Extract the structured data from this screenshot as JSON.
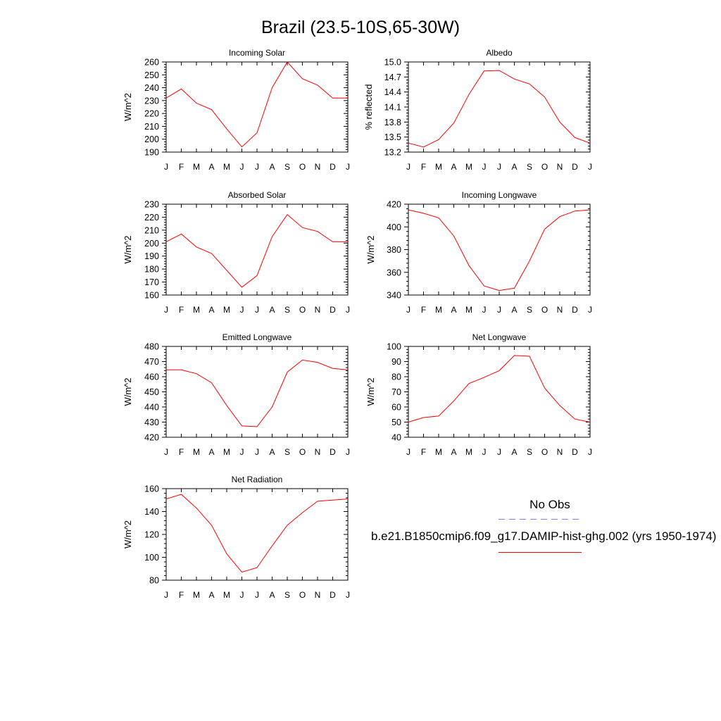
{
  "title": "Brazil (23.5-10S,65-30W)",
  "legend": {
    "obs_label": "No Obs",
    "model_label": "b.e21.B1850cmip6.f09_g17.DAMIP-hist-ghg.002 (yrs 1950-1974)",
    "obs_color": "#8080ff",
    "model_color": "#ff0000"
  },
  "chart_data": [
    {
      "type": "line",
      "title": "Incoming Solar",
      "ylabel": "W/m^2",
      "x": [
        "J",
        "F",
        "M",
        "A",
        "M",
        "J",
        "J",
        "A",
        "S",
        "O",
        "N",
        "D",
        "J"
      ],
      "ylim": [
        190,
        260
      ],
      "yticks": [
        "190",
        "200",
        "210",
        "220",
        "230",
        "240",
        "250",
        "260"
      ],
      "series": [
        {
          "values": [
            232,
            239,
            228,
            223,
            208,
            194,
            205,
            240,
            260,
            247,
            242,
            232,
            232
          ]
        }
      ]
    },
    {
      "type": "line",
      "title": "Albedo",
      "ylabel": "% reflected",
      "x": [
        "J",
        "F",
        "M",
        "A",
        "M",
        "J",
        "J",
        "A",
        "S",
        "O",
        "N",
        "D",
        "J"
      ],
      "ylim": [
        13.2,
        15.0
      ],
      "yticks": [
        "13.2",
        "13.5",
        "13.8",
        "14.1",
        "14.4",
        "14.7",
        "15.0"
      ],
      "series": [
        {
          "values": [
            13.38,
            13.3,
            13.45,
            13.78,
            14.35,
            14.82,
            14.83,
            14.66,
            14.56,
            14.3,
            13.8,
            13.49,
            13.38
          ]
        }
      ]
    },
    {
      "type": "line",
      "title": "Absorbed Solar",
      "ylabel": "W/m^2",
      "x": [
        "J",
        "F",
        "M",
        "A",
        "M",
        "J",
        "J",
        "A",
        "S",
        "O",
        "N",
        "D",
        "J"
      ],
      "ylim": [
        160,
        230
      ],
      "yticks": [
        "160",
        "170",
        "180",
        "190",
        "200",
        "210",
        "220",
        "230"
      ],
      "series": [
        {
          "values": [
            201,
            207,
            197,
            192,
            179,
            166,
            175,
            205,
            222,
            212,
            209,
            201,
            201
          ]
        }
      ]
    },
    {
      "type": "line",
      "title": "Incoming Longwave",
      "ylabel": "W/m^2",
      "x": [
        "J",
        "F",
        "M",
        "A",
        "M",
        "J",
        "J",
        "A",
        "S",
        "O",
        "N",
        "D",
        "J"
      ],
      "ylim": [
        340,
        420
      ],
      "yticks": [
        "340",
        "360",
        "380",
        "400",
        "420"
      ],
      "series": [
        {
          "values": [
            415,
            412,
            408,
            392,
            366,
            348,
            344,
            346,
            370,
            398,
            409,
            414,
            415
          ]
        }
      ]
    },
    {
      "type": "line",
      "title": "Emitted Longwave",
      "ylabel": "W/m^2",
      "x": [
        "J",
        "F",
        "M",
        "A",
        "M",
        "J",
        "J",
        "A",
        "S",
        "O",
        "N",
        "D",
        "J"
      ],
      "ylim": [
        420,
        480
      ],
      "yticks": [
        "420",
        "430",
        "440",
        "450",
        "460",
        "470",
        "480"
      ],
      "series": [
        {
          "values": [
            464.5,
            464.5,
            462,
            456,
            441,
            427.5,
            427,
            440,
            463,
            471,
            469.5,
            465.5,
            464.5
          ]
        }
      ]
    },
    {
      "type": "line",
      "title": "Net Longwave",
      "ylabel": "W/m^2",
      "x": [
        "J",
        "F",
        "M",
        "A",
        "M",
        "J",
        "J",
        "A",
        "S",
        "O",
        "N",
        "D",
        "J"
      ],
      "ylim": [
        40,
        100
      ],
      "yticks": [
        "40",
        "50",
        "60",
        "70",
        "80",
        "90",
        "100"
      ],
      "series": [
        {
          "values": [
            50,
            53,
            54,
            64,
            75.5,
            79.5,
            84,
            94,
            93.5,
            72.5,
            61,
            52,
            50
          ]
        }
      ]
    },
    {
      "type": "line",
      "title": "Net Radiation",
      "ylabel": "W/m^2",
      "x": [
        "J",
        "F",
        "M",
        "A",
        "M",
        "J",
        "J",
        "A",
        "S",
        "O",
        "N",
        "D",
        "J"
      ],
      "ylim": [
        80,
        160
      ],
      "yticks": [
        "80",
        "100",
        "120",
        "140",
        "160"
      ],
      "series": [
        {
          "values": [
            151,
            155,
            143,
            128,
            103,
            87,
            91,
            110,
            128,
            139,
            149,
            150,
            151
          ]
        }
      ]
    }
  ]
}
